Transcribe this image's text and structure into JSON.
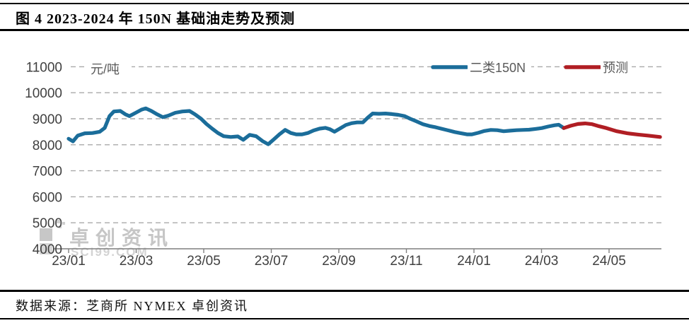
{
  "figure": {
    "title": "图 4  2023-2024 年 150N 基础油走势及预测",
    "source_note": "数据来源：芝商所 NYMEX  卓创资讯",
    "watermark": {
      "name": "卓创资讯",
      "domain": "SCI99.COM"
    }
  },
  "chart_data": {
    "type": "line",
    "title": "2023-2024 年 150N 基础油走势及预测",
    "unit_label": "元/吨",
    "xlabel": "",
    "ylabel": "元/吨",
    "ylim": [
      4000,
      11000
    ],
    "y_ticks": [
      4000,
      5000,
      6000,
      7000,
      8000,
      9000,
      10000,
      11000
    ],
    "x_tick_labels": [
      "23/01",
      "23/03",
      "23/05",
      "23/07",
      "23/09",
      "23/11",
      "24/01",
      "24/03",
      "24/05"
    ],
    "x_tick_months": [
      0,
      2,
      4,
      6,
      8,
      10,
      12,
      14,
      16
    ],
    "x_unit": "months since 2023-01",
    "grid": "horizontal dashed",
    "legend_position": "top-right",
    "colors": {
      "primary": "#1b6d9a",
      "forecast": "#b01e24",
      "grid": "#a9a9a9",
      "axis": "#7f7f7f",
      "tick_text": "#404040",
      "legend_text": "#595959"
    },
    "series": [
      {
        "name": "二类150N",
        "key": "primary",
        "color": "#1b6d9a",
        "points": [
          [
            0.0,
            8230
          ],
          [
            0.13,
            8130
          ],
          [
            0.27,
            8350
          ],
          [
            0.48,
            8440
          ],
          [
            0.71,
            8450
          ],
          [
            0.92,
            8500
          ],
          [
            1.07,
            8650
          ],
          [
            1.21,
            9100
          ],
          [
            1.34,
            9280
          ],
          [
            1.53,
            9300
          ],
          [
            1.68,
            9170
          ],
          [
            1.8,
            9100
          ],
          [
            1.99,
            9230
          ],
          [
            2.16,
            9350
          ],
          [
            2.28,
            9400
          ],
          [
            2.45,
            9300
          ],
          [
            2.62,
            9170
          ],
          [
            2.79,
            9060
          ],
          [
            2.95,
            9120
          ],
          [
            3.16,
            9230
          ],
          [
            3.37,
            9280
          ],
          [
            3.58,
            9300
          ],
          [
            3.75,
            9160
          ],
          [
            3.92,
            9000
          ],
          [
            4.08,
            8800
          ],
          [
            4.25,
            8620
          ],
          [
            4.42,
            8450
          ],
          [
            4.59,
            8330
          ],
          [
            4.8,
            8300
          ],
          [
            5.01,
            8320
          ],
          [
            5.17,
            8190
          ],
          [
            5.36,
            8380
          ],
          [
            5.55,
            8330
          ],
          [
            5.74,
            8140
          ],
          [
            5.91,
            8020
          ],
          [
            6.07,
            8200
          ],
          [
            6.24,
            8400
          ],
          [
            6.41,
            8570
          ],
          [
            6.58,
            8450
          ],
          [
            6.74,
            8400
          ],
          [
            6.91,
            8400
          ],
          [
            7.08,
            8450
          ],
          [
            7.25,
            8550
          ],
          [
            7.43,
            8620
          ],
          [
            7.6,
            8650
          ],
          [
            7.73,
            8600
          ],
          [
            7.87,
            8500
          ],
          [
            8.04,
            8630
          ],
          [
            8.21,
            8760
          ],
          [
            8.38,
            8830
          ],
          [
            8.54,
            8860
          ],
          [
            8.71,
            8860
          ],
          [
            8.86,
            9050
          ],
          [
            9.0,
            9200
          ],
          [
            9.19,
            9190
          ],
          [
            9.38,
            9200
          ],
          [
            9.57,
            9180
          ],
          [
            9.76,
            9150
          ],
          [
            9.95,
            9100
          ],
          [
            10.11,
            9000
          ],
          [
            10.3,
            8900
          ],
          [
            10.49,
            8790
          ],
          [
            10.68,
            8720
          ],
          [
            10.87,
            8670
          ],
          [
            11.06,
            8610
          ],
          [
            11.25,
            8550
          ],
          [
            11.43,
            8490
          ],
          [
            11.62,
            8440
          ],
          [
            11.79,
            8400
          ],
          [
            11.94,
            8400
          ],
          [
            12.13,
            8460
          ],
          [
            12.31,
            8530
          ],
          [
            12.5,
            8570
          ],
          [
            12.69,
            8560
          ],
          [
            12.88,
            8520
          ],
          [
            13.07,
            8540
          ],
          [
            13.26,
            8560
          ],
          [
            13.45,
            8570
          ],
          [
            13.63,
            8580
          ],
          [
            13.82,
            8610
          ],
          [
            14.01,
            8640
          ],
          [
            14.2,
            8700
          ],
          [
            14.39,
            8750
          ],
          [
            14.51,
            8770
          ],
          [
            14.66,
            8640
          ]
        ]
      },
      {
        "name": "预测",
        "key": "forecast",
        "color": "#b01e24",
        "points": [
          [
            14.66,
            8640
          ],
          [
            14.87,
            8730
          ],
          [
            15.08,
            8800
          ],
          [
            15.29,
            8820
          ],
          [
            15.5,
            8790
          ],
          [
            15.71,
            8710
          ],
          [
            15.92,
            8640
          ],
          [
            16.23,
            8520
          ],
          [
            16.54,
            8440
          ],
          [
            16.86,
            8390
          ],
          [
            17.17,
            8350
          ],
          [
            17.51,
            8300
          ]
        ]
      }
    ]
  }
}
